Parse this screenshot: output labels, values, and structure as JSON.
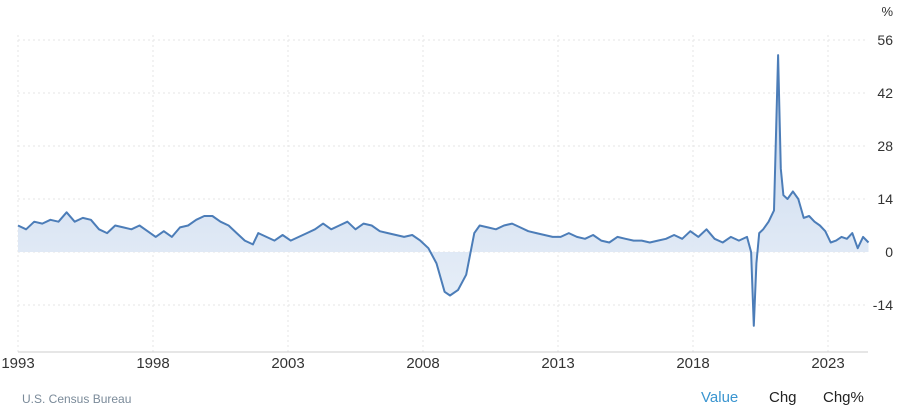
{
  "chart_data": {
    "type": "area",
    "unit": "%",
    "title": "",
    "xlabel": "",
    "ylabel": "",
    "x_ticks": [
      "1993",
      "1998",
      "2003",
      "2008",
      "2013",
      "2018",
      "2023"
    ],
    "y_ticks": [
      "56",
      "42",
      "28",
      "14",
      "0",
      "-14"
    ],
    "ylim": [
      -20,
      58
    ],
    "xlim": [
      1993,
      2024.6
    ],
    "grid": true,
    "series": [
      {
        "color": "#4c7db8",
        "fill": "#d4e0f0",
        "x": [
          1993.0,
          1993.3,
          1993.6,
          1993.9,
          1994.2,
          1994.5,
          1994.8,
          1995.1,
          1995.4,
          1995.7,
          1996.0,
          1996.3,
          1996.6,
          1996.9,
          1997.2,
          1997.5,
          1997.8,
          1998.1,
          1998.4,
          1998.7,
          1999.0,
          1999.3,
          1999.6,
          1999.9,
          2000.2,
          2000.5,
          2000.8,
          2001.1,
          2001.4,
          2001.7,
          2001.9,
          2002.2,
          2002.5,
          2002.8,
          2003.1,
          2003.4,
          2003.7,
          2004.0,
          2004.3,
          2004.6,
          2004.9,
          2005.2,
          2005.5,
          2005.8,
          2006.1,
          2006.4,
          2006.7,
          2007.0,
          2007.3,
          2007.6,
          2007.9,
          2008.2,
          2008.5,
          2008.8,
          2009.0,
          2009.3,
          2009.6,
          2009.9,
          2010.1,
          2010.4,
          2010.7,
          2011.0,
          2011.3,
          2011.6,
          2011.9,
          2012.2,
          2012.5,
          2012.8,
          2013.1,
          2013.4,
          2013.7,
          2014.0,
          2014.3,
          2014.6,
          2014.9,
          2015.2,
          2015.5,
          2015.8,
          2016.1,
          2016.4,
          2016.7,
          2017.0,
          2017.3,
          2017.6,
          2017.9,
          2018.2,
          2018.5,
          2018.8,
          2019.1,
          2019.4,
          2019.7,
          2020.0,
          2020.15,
          2020.25,
          2020.35,
          2020.45,
          2020.6,
          2020.8,
          2021.0,
          2021.15,
          2021.25,
          2021.35,
          2021.5,
          2021.7,
          2021.9,
          2022.1,
          2022.3,
          2022.5,
          2022.7,
          2022.9,
          2023.1,
          2023.3,
          2023.5,
          2023.7,
          2023.9,
          2024.1,
          2024.3,
          2024.5
        ],
        "values": [
          7.0,
          6.0,
          8.0,
          7.5,
          8.5,
          8.0,
          10.5,
          8.0,
          9.0,
          8.5,
          6.0,
          5.0,
          7.0,
          6.5,
          6.0,
          7.0,
          5.5,
          4.0,
          5.5,
          4.0,
          6.5,
          7.0,
          8.5,
          9.5,
          9.5,
          8.0,
          7.0,
          5.0,
          3.0,
          2.0,
          5.0,
          4.0,
          3.0,
          4.5,
          3.0,
          4.0,
          5.0,
          6.0,
          7.5,
          6.0,
          7.0,
          8.0,
          6.0,
          7.5,
          7.0,
          5.5,
          5.0,
          4.5,
          4.0,
          4.5,
          3.0,
          1.0,
          -3.0,
          -10.5,
          -11.5,
          -10.0,
          -6.0,
          5.0,
          7.0,
          6.5,
          6.0,
          7.0,
          7.5,
          6.5,
          5.5,
          5.0,
          4.5,
          4.0,
          4.0,
          5.0,
          4.0,
          3.5,
          4.5,
          3.0,
          2.5,
          4.0,
          3.5,
          3.0,
          3.0,
          2.5,
          3.0,
          3.5,
          4.5,
          3.5,
          5.5,
          4.0,
          6.0,
          3.5,
          2.5,
          4.0,
          3.0,
          4.0,
          0.0,
          -19.5,
          -3.0,
          5.0,
          6.0,
          8.0,
          11.0,
          52.0,
          22.0,
          15.0,
          14.0,
          16.0,
          14.0,
          9.0,
          9.5,
          8.0,
          7.0,
          5.5,
          2.5,
          3.0,
          4.0,
          3.5,
          5.0,
          1.0,
          4.0,
          2.5
        ]
      }
    ]
  },
  "footer": {
    "source": "U.S. Census Bureau",
    "toggles": {
      "value": "Value",
      "chg": "Chg",
      "chgpct": "Chg%"
    }
  }
}
